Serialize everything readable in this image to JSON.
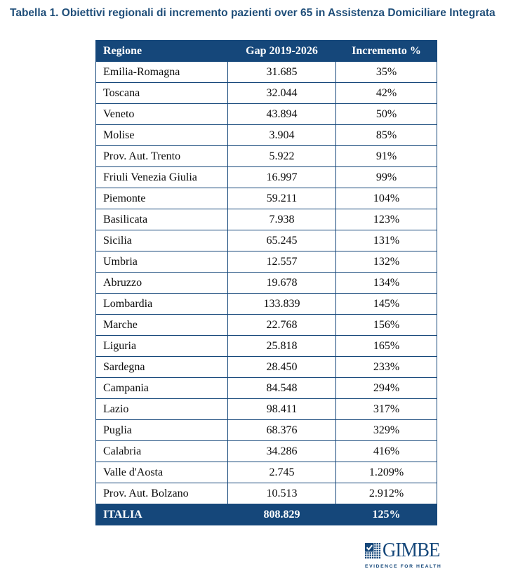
{
  "title": "Tabella 1. Obiettivi regionali di incremento pazienti over 65 in Assistenza Domiciliare Integrata",
  "table": {
    "headers": [
      "Regione",
      "Gap 2019-2026",
      "Incremento %"
    ],
    "rows": [
      [
        "Emilia-Romagna",
        "31.685",
        "35%"
      ],
      [
        "Toscana",
        "32.044",
        "42%"
      ],
      [
        "Veneto",
        "43.894",
        "50%"
      ],
      [
        "Molise",
        "3.904",
        "85%"
      ],
      [
        "Prov. Aut. Trento",
        "5.922",
        "91%"
      ],
      [
        "Friuli Venezia Giulia",
        "16.997",
        "99%"
      ],
      [
        "Piemonte",
        "59.211",
        "104%"
      ],
      [
        "Basilicata",
        "7.938",
        "123%"
      ],
      [
        "Sicilia",
        "65.245",
        "131%"
      ],
      [
        "Umbria",
        "12.557",
        "132%"
      ],
      [
        "Abruzzo",
        "19.678",
        "134%"
      ],
      [
        "Lombardia",
        "133.839",
        "145%"
      ],
      [
        "Marche",
        "22.768",
        "156%"
      ],
      [
        "Liguria",
        "25.818",
        "165%"
      ],
      [
        "Sardegna",
        "28.450",
        "233%"
      ],
      [
        "Campania",
        "84.548",
        "294%"
      ],
      [
        "Lazio",
        "98.411",
        "317%"
      ],
      [
        "Puglia",
        "68.376",
        "329%"
      ],
      [
        "Calabria",
        "34.286",
        "416%"
      ],
      [
        "Valle d'Aosta",
        "2.745",
        "1.209%"
      ],
      [
        "Prov. Aut. Bolzano",
        "10.513",
        "2.912%"
      ]
    ],
    "total": {
      "label": "ITALIA",
      "gap": "808.829",
      "increment": "125%"
    }
  },
  "logo": {
    "name": "GIMBE",
    "tagline": "EVIDENCE FOR HEALTH"
  },
  "colors": {
    "navy": "#15477A",
    "title_blue": "#1F4E79",
    "body_text": "#0b0b0b"
  },
  "chart_data": {
    "type": "table",
    "title": "Tabella 1. Obiettivi regionali di incremento pazienti over 65 in Assistenza Domiciliare Integrata",
    "columns": [
      "Regione",
      "Gap 2019-2026",
      "Incremento %"
    ],
    "rows": [
      {
        "regione": "Emilia-Romagna",
        "gap_2019_2026": 31685,
        "incremento_pct": 35
      },
      {
        "regione": "Toscana",
        "gap_2019_2026": 32044,
        "incremento_pct": 42
      },
      {
        "regione": "Veneto",
        "gap_2019_2026": 43894,
        "incremento_pct": 50
      },
      {
        "regione": "Molise",
        "gap_2019_2026": 3904,
        "incremento_pct": 85
      },
      {
        "regione": "Prov. Aut. Trento",
        "gap_2019_2026": 5922,
        "incremento_pct": 91
      },
      {
        "regione": "Friuli Venezia Giulia",
        "gap_2019_2026": 16997,
        "incremento_pct": 99
      },
      {
        "regione": "Piemonte",
        "gap_2019_2026": 59211,
        "incremento_pct": 104
      },
      {
        "regione": "Basilicata",
        "gap_2019_2026": 7938,
        "incremento_pct": 123
      },
      {
        "regione": "Sicilia",
        "gap_2019_2026": 65245,
        "incremento_pct": 131
      },
      {
        "regione": "Umbria",
        "gap_2019_2026": 12557,
        "incremento_pct": 132
      },
      {
        "regione": "Abruzzo",
        "gap_2019_2026": 19678,
        "incremento_pct": 134
      },
      {
        "regione": "Lombardia",
        "gap_2019_2026": 133839,
        "incremento_pct": 145
      },
      {
        "regione": "Marche",
        "gap_2019_2026": 22768,
        "incremento_pct": 156
      },
      {
        "regione": "Liguria",
        "gap_2019_2026": 25818,
        "incremento_pct": 165
      },
      {
        "regione": "Sardegna",
        "gap_2019_2026": 28450,
        "incremento_pct": 233
      },
      {
        "regione": "Campania",
        "gap_2019_2026": 84548,
        "incremento_pct": 294
      },
      {
        "regione": "Lazio",
        "gap_2019_2026": 98411,
        "incremento_pct": 317
      },
      {
        "regione": "Puglia",
        "gap_2019_2026": 68376,
        "incremento_pct": 329
      },
      {
        "regione": "Calabria",
        "gap_2019_2026": 34286,
        "incremento_pct": 416
      },
      {
        "regione": "Valle d'Aosta",
        "gap_2019_2026": 2745,
        "incremento_pct": 1209
      },
      {
        "regione": "Prov. Aut. Bolzano",
        "gap_2019_2026": 10513,
        "incremento_pct": 2912
      }
    ],
    "total_row": {
      "regione": "ITALIA",
      "gap_2019_2026": 808829,
      "incremento_pct": 125
    }
  }
}
